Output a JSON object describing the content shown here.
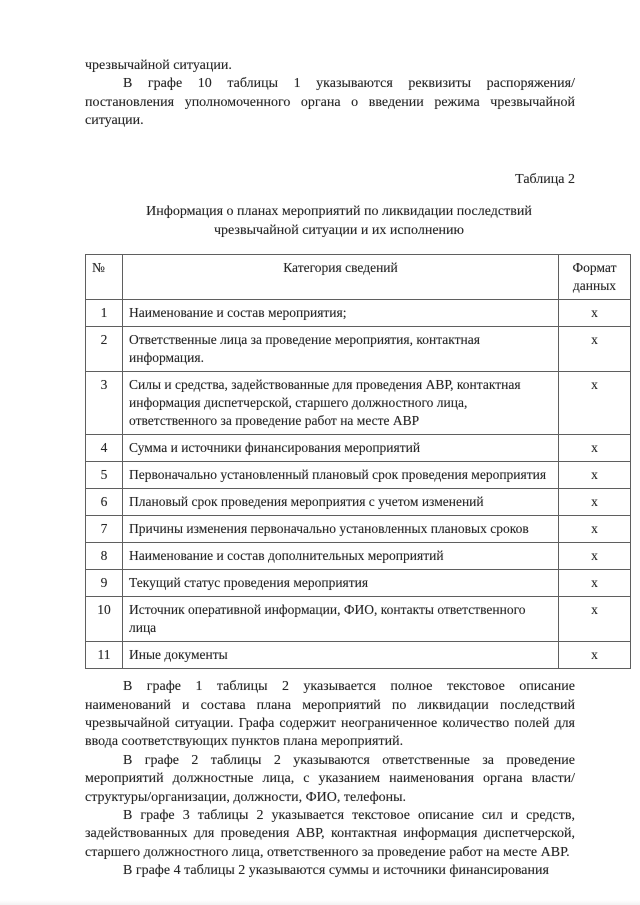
{
  "document": {
    "intro": {
      "continuation_line": "чрезвычайной ситуации.",
      "paragraph": "В графе 10 таблицы 1 указываются реквизиты распоряжения/постановления уполномоченного органа о введении режима чрезвычайной ситуации."
    },
    "table_label": "Таблица 2",
    "table_title": "Информация о планах мероприятий по ликвидации последствий чрезвычайной ситуации и их исполнению",
    "table": {
      "headers": {
        "num": "№",
        "category": "Категория сведений",
        "format": "Формат данных"
      },
      "rows": [
        {
          "num": "1",
          "category": "Наименование и состав мероприятия;",
          "format": "х"
        },
        {
          "num": "2",
          "category": "Ответственные лица за проведение мероприятия, контактная информация.",
          "format": "х"
        },
        {
          "num": "3",
          "category": "Силы и средства, задействованные для проведения АВР, контактная информация диспетчерской, старшего должностного лица, ответственного за проведение работ на месте АВР",
          "format": "х"
        },
        {
          "num": "4",
          "category": "Сумма и источники финансирования мероприятий",
          "format": "х"
        },
        {
          "num": "5",
          "category": "Первоначально установленный плановый срок проведения мероприятия",
          "format": "х"
        },
        {
          "num": "6",
          "category": "Плановый срок проведения мероприятия с учетом изменений",
          "format": "х"
        },
        {
          "num": "7",
          "category": "Причины изменения первоначально установленных плановых сроков",
          "format": "х"
        },
        {
          "num": "8",
          "category": "Наименование и состав дополнительных мероприятий",
          "format": "х"
        },
        {
          "num": "9",
          "category": "Текущий статус проведения мероприятия",
          "format": "х"
        },
        {
          "num": "10",
          "category": "Источник оперативной информации, ФИО, контакты ответственного лица",
          "format": "х"
        },
        {
          "num": "11",
          "category": "Иные документы",
          "format": "х"
        }
      ]
    },
    "outro_paragraphs": [
      "В графе 1 таблицы 2 указывается полное текстовое описание наименований и состава плана мероприятий по ликвидации последствий чрезвычайной ситуации. Графа содержит неограниченное количество полей для ввода соответствующих пунктов плана мероприятий.",
      "В графе 2 таблицы 2 указываются ответственные за проведение мероприятий должностные лица, с указанием наименования органа власти/структуры/организации, должности, ФИО, телефоны.",
      "В графе 3 таблицы 2 указывается текстовое описание сил и средств, задействованных для проведения АВР, контактная информация диспетчерской, старшего должностного лица, ответственного за проведение работ на месте АВР.",
      "В графе 4 таблицы 2 указываются суммы и источники финансирования"
    ]
  }
}
